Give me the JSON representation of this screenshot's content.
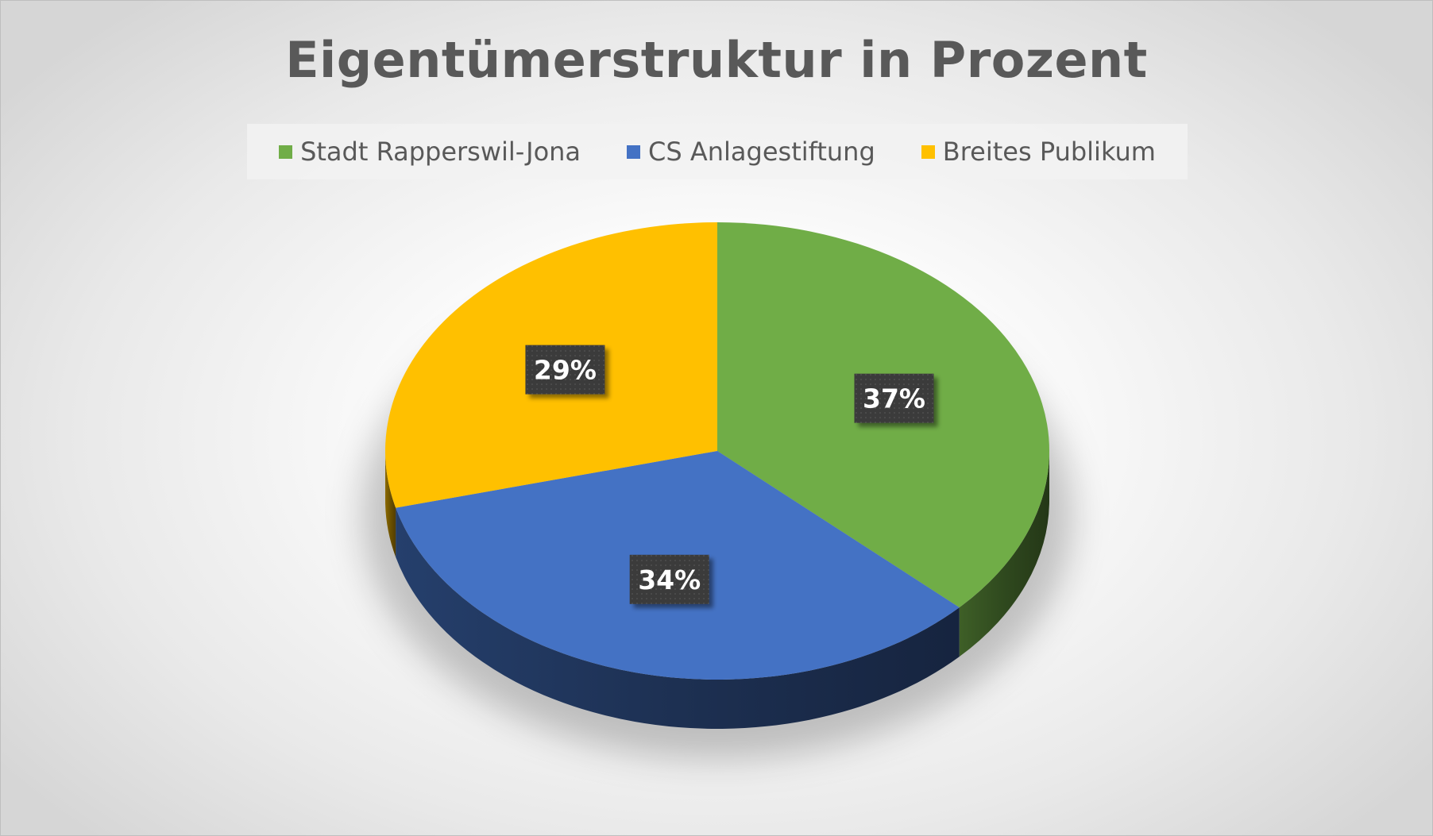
{
  "chart_data": {
    "type": "pie",
    "title": "Eigentümerstruktur in Prozent",
    "legend_position": "top",
    "categories": [
      "Stadt Rapperswil-Jona",
      "CS Anlagestiftung",
      "Breites Publikum"
    ],
    "values": [
      37,
      34,
      29
    ],
    "value_labels": [
      "37%",
      "34%",
      "29%"
    ],
    "colors": [
      "#70AD47",
      "#4472C4",
      "#FFC000"
    ],
    "style": "3d-perspective"
  }
}
